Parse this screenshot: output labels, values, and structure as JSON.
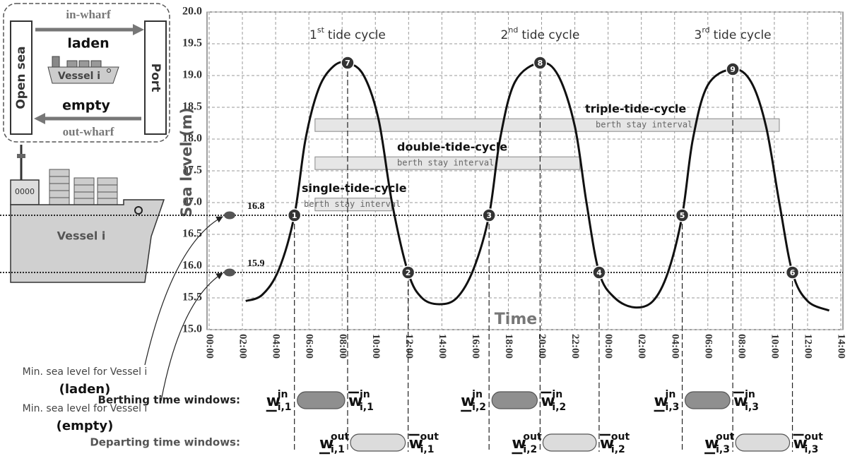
{
  "inset": {
    "left": "Open sea",
    "right": "Port",
    "top_label": "in-wharf",
    "top_cargo": "laden",
    "bottom_cargo": "empty",
    "bottom_label": "out-wharf",
    "vessel": "Vessel i"
  },
  "vessel": {
    "name": "Vessel i",
    "laden_note": "Min. sea level for Vessel i",
    "laden": "(laden)",
    "empty_note": "Min. sea level for Vessel i",
    "empty": "(empty)"
  },
  "chart_data": {
    "type": "line",
    "y_label": "Sea level (m)",
    "x_label": "Time",
    "color": "#111111",
    "grid": true,
    "xlim": [
      0,
      38
    ],
    "ylim": [
      15,
      20
    ],
    "xticks": [
      {
        "value": 0,
        "label": "00:00"
      },
      {
        "value": 2,
        "label": "02:00"
      },
      {
        "value": 4,
        "label": "04:00"
      },
      {
        "value": 6,
        "label": "06:00"
      },
      {
        "value": 8,
        "label": "08:00"
      },
      {
        "value": 10,
        "label": "10:00"
      },
      {
        "value": 12,
        "label": "12:00"
      },
      {
        "value": 14,
        "label": "14:00"
      },
      {
        "value": 16,
        "label": "16:00"
      },
      {
        "value": 18,
        "label": "18:00"
      },
      {
        "value": 20,
        "label": "20:00"
      },
      {
        "value": 22,
        "label": "22:00"
      },
      {
        "value": 24,
        "label": "00:00"
      },
      {
        "value": 26,
        "label": "02:00"
      },
      {
        "value": 28,
        "label": "04:00"
      },
      {
        "value": 30,
        "label": "06:00"
      },
      {
        "value": 32,
        "label": "08:00"
      },
      {
        "value": 34,
        "label": "10:00"
      },
      {
        "value": 36,
        "label": "12:00"
      },
      {
        "value": 38,
        "label": "14:00"
      }
    ],
    "yticks": [
      {
        "value": 15,
        "label": "15.0"
      },
      15.5,
      {
        "value": 16,
        "label": "16.0"
      },
      16.5,
      {
        "value": 17,
        "label": "17.0"
      },
      17.5,
      {
        "value": 18,
        "label": "18.0"
      },
      18.5,
      {
        "value": 19,
        "label": "19.0"
      },
      19.5,
      {
        "value": 20,
        "label": "20.0"
      }
    ],
    "x": [
      2.2,
      3.2,
      4.2,
      5.13,
      5.8,
      6.6,
      7.5,
      8.33,
      9.3,
      10.2,
      11.0,
      11.97,
      12.8,
      13.85,
      14.9,
      15.9,
      16.84,
      17.5,
      18.4,
      19.91,
      21.0,
      22.0,
      22.7,
      23.46,
      24.4,
      25.6,
      26.7,
      27.6,
      28.46,
      29.1,
      30.0,
      31.5,
      32.6,
      33.5,
      34.3,
      35.09,
      36.0,
      37.3
    ],
    "values": [
      15.45,
      15.55,
      15.95,
      16.8,
      18.0,
      18.8,
      19.15,
      19.2,
      19.0,
      18.3,
      17.0,
      15.9,
      15.5,
      15.4,
      15.5,
      15.95,
      16.8,
      18.0,
      18.9,
      19.2,
      19.0,
      18.2,
      17.0,
      15.9,
      15.5,
      15.35,
      15.45,
      15.9,
      16.8,
      18.0,
      18.85,
      19.1,
      18.9,
      18.2,
      17.0,
      15.9,
      15.45,
      15.3
    ],
    "thresholds": [
      16.8,
      15.9
    ],
    "markers": {
      "labels": [
        "1",
        "2",
        "3",
        "4",
        "5",
        "6",
        "7",
        "8",
        "9"
      ],
      "x": [
        5.13,
        11.97,
        16.84,
        23.46,
        28.46,
        35.09,
        8.33,
        19.91,
        31.5
      ],
      "y": [
        16.8,
        15.9,
        16.8,
        15.9,
        16.8,
        15.9,
        19.2,
        19.2,
        19.1
      ]
    },
    "cycles": [
      {
        "number": "1",
        "suffix": "st",
        "text": "tide cycle"
      },
      {
        "number": "2",
        "suffix": "nd",
        "text": "tide cycle"
      },
      {
        "number": "3",
        "suffix": "rd",
        "text": "tide cycle"
      }
    ],
    "intervals": [
      {
        "name": "single-tide-cycle",
        "label": "berth stay interval",
        "x": [
          6.37,
          10.98
        ],
        "y": 16.97
      },
      {
        "name": "double-tide-cycle",
        "label": "berth stay interval",
        "x": [
          6.37,
          22.3
        ],
        "y": 17.62
      },
      {
        "name": "triple-tide-cycle",
        "label": "berth stay interval",
        "x": [
          6.37,
          34.3
        ],
        "y": 18.22
      }
    ]
  },
  "windows": {
    "berthing": {
      "title": "Berthing time windows:",
      "items": [
        {
          "lower": {
            "base": "w",
            "sup": "in",
            "sub": "i,1"
          },
          "upper": {
            "base": "w",
            "sup": "in",
            "sub": "i,1"
          }
        },
        {
          "lower": {
            "base": "w",
            "sup": "in",
            "sub": "i,2"
          },
          "upper": {
            "base": "w",
            "sup": "in",
            "sub": "i,2"
          }
        },
        {
          "lower": {
            "base": "w",
            "sup": "in",
            "sub": "i,3"
          },
          "upper": {
            "base": "w",
            "sup": "in",
            "sub": "i,3"
          }
        }
      ]
    },
    "departing": {
      "title": "Departing time windows:",
      "items": [
        {
          "lower": {
            "base": "w",
            "sup": "out",
            "sub": "i,1"
          },
          "upper": {
            "base": "w",
            "sup": "out",
            "sub": "i,1"
          }
        },
        {
          "lower": {
            "base": "w",
            "sup": "out",
            "sub": "i,2"
          },
          "upper": {
            "base": "w",
            "sup": "out",
            "sub": "i,2"
          }
        },
        {
          "lower": {
            "base": "w",
            "sup": "out",
            "sub": "i,3"
          },
          "upper": {
            "base": "w",
            "sup": "out",
            "sub": "i,3"
          }
        }
      ]
    }
  }
}
